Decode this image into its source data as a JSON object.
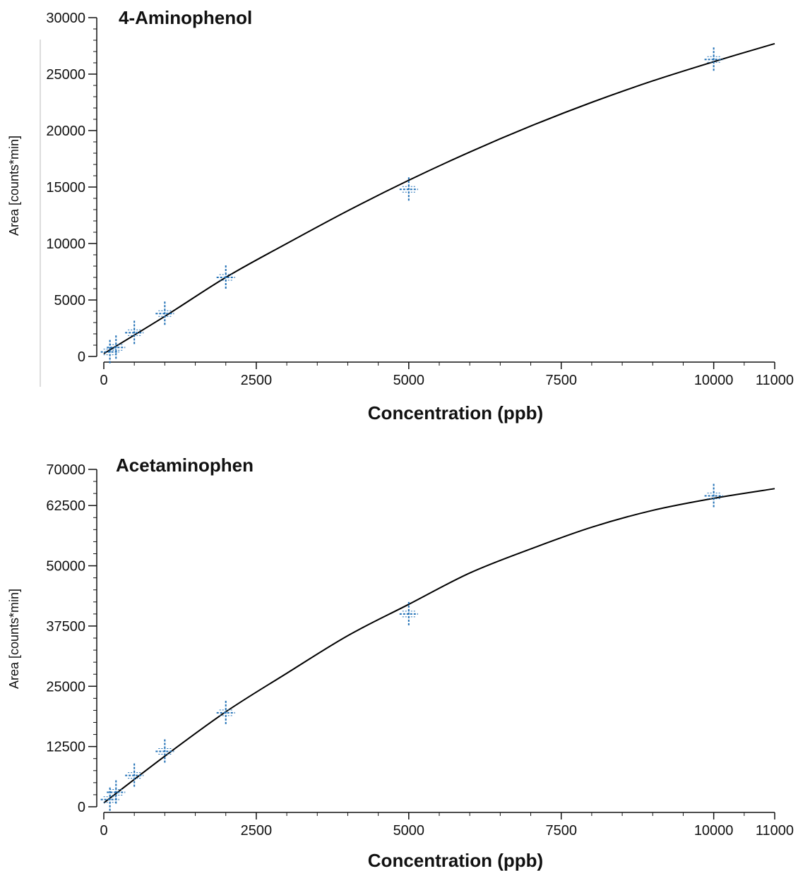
{
  "chart_data": [
    {
      "type": "scatter",
      "title": "4-Aminophenol",
      "xlabel": "Concentration (ppb)",
      "ylabel": "Area [counts*min]",
      "xlim": [
        0,
        11000
      ],
      "ylim": [
        0,
        30000
      ],
      "x_ticks": [
        "0",
        "2500",
        "5000",
        "7500",
        "10000",
        "11000"
      ],
      "y_ticks": [
        "0",
        "5000",
        "10000",
        "15000",
        "20000",
        "25000",
        "30000"
      ],
      "series": [
        {
          "type": "scatter",
          "marker": "cross",
          "color": "#1f6fb5",
          "points": [
            {
              "x": 100,
              "y": 400
            },
            {
              "x": 200,
              "y": 800
            },
            {
              "x": 500,
              "y": 2100
            },
            {
              "x": 1000,
              "y": 3800
            },
            {
              "x": 2000,
              "y": 7000
            },
            {
              "x": 5000,
              "y": 14800
            },
            {
              "x": 10000,
              "y": 26300
            }
          ]
        },
        {
          "type": "line",
          "color": "#000000",
          "points": [
            {
              "x": 0,
              "y": 250
            },
            {
              "x": 1000,
              "y": 3550
            },
            {
              "x": 2000,
              "y": 7000
            },
            {
              "x": 3000,
              "y": 10000
            },
            {
              "x": 4000,
              "y": 12900
            },
            {
              "x": 5000,
              "y": 15600
            },
            {
              "x": 6000,
              "y": 18100
            },
            {
              "x": 7000,
              "y": 20400
            },
            {
              "x": 8000,
              "y": 22500
            },
            {
              "x": 9000,
              "y": 24400
            },
            {
              "x": 10000,
              "y": 26100
            },
            {
              "x": 11000,
              "y": 27700
            }
          ]
        }
      ]
    },
    {
      "type": "scatter",
      "title": "Acetaminophen",
      "xlabel": "Concentration (ppb)",
      "ylabel": "Area [counts*min]",
      "xlim": [
        0,
        11000
      ],
      "ylim": [
        0,
        70000
      ],
      "x_ticks": [
        "0",
        "2500",
        "5000",
        "7500",
        "10000",
        "11000"
      ],
      "y_ticks": [
        "0",
        "12500",
        "25000",
        "37500",
        "50000",
        "62500",
        "70000"
      ],
      "series": [
        {
          "type": "scatter",
          "marker": "cross",
          "color": "#1f6fb5",
          "points": [
            {
              "x": 100,
              "y": 1500
            },
            {
              "x": 200,
              "y": 3000
            },
            {
              "x": 500,
              "y": 6500
            },
            {
              "x": 1000,
              "y": 11500
            },
            {
              "x": 2000,
              "y": 19500
            },
            {
              "x": 5000,
              "y": 40000
            },
            {
              "x": 10000,
              "y": 64500
            }
          ]
        },
        {
          "type": "line",
          "color": "#000000",
          "points": [
            {
              "x": 0,
              "y": 800
            },
            {
              "x": 1000,
              "y": 10500
            },
            {
              "x": 2000,
              "y": 19700
            },
            {
              "x": 3000,
              "y": 27700
            },
            {
              "x": 4000,
              "y": 35500
            },
            {
              "x": 5000,
              "y": 42000
            },
            {
              "x": 6000,
              "y": 48500
            },
            {
              "x": 7000,
              "y": 53500
            },
            {
              "x": 8000,
              "y": 58000
            },
            {
              "x": 9000,
              "y": 61500
            },
            {
              "x": 10000,
              "y": 64000
            },
            {
              "x": 11000,
              "y": 66000
            }
          ]
        }
      ]
    }
  ]
}
